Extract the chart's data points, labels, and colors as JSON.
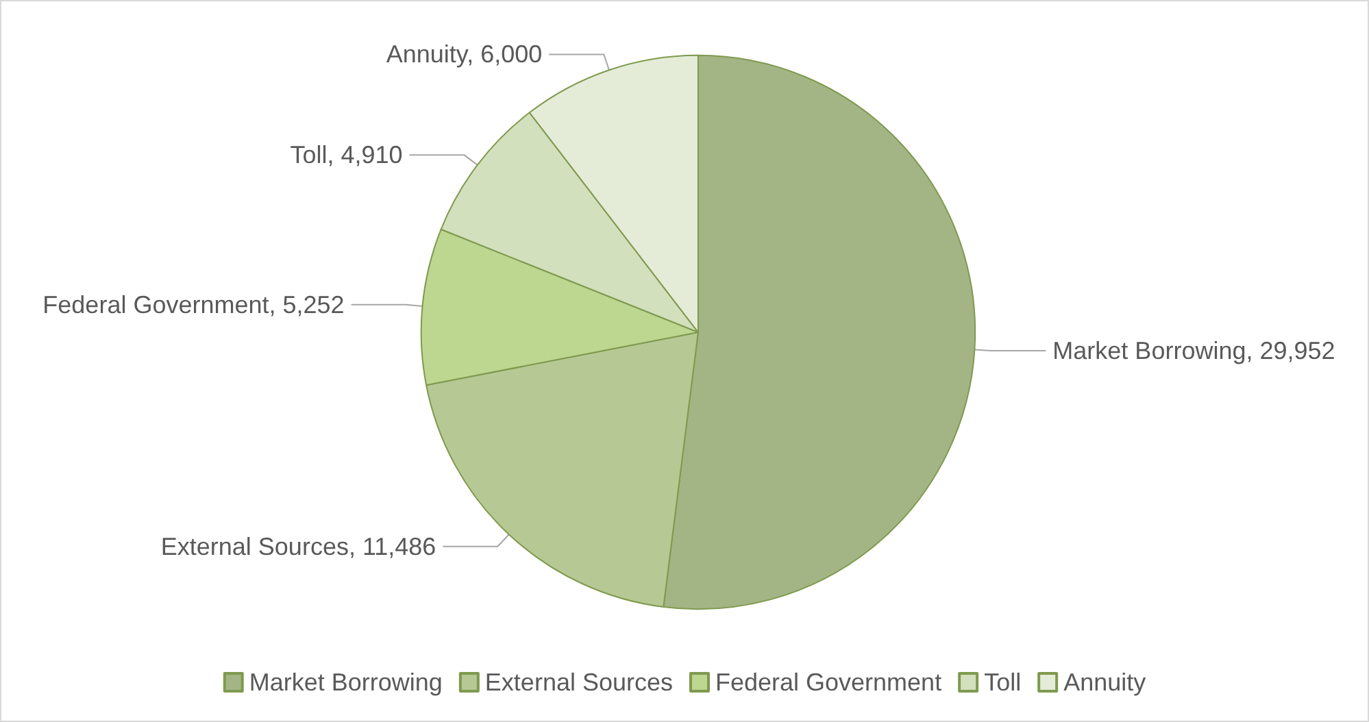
{
  "chart_data": {
    "type": "pie",
    "categories": [
      "Market Borrowing",
      "External Sources",
      "Federal Government",
      "Toll",
      "Annuity"
    ],
    "values": [
      29952,
      11486,
      5252,
      4910,
      6000
    ],
    "colors": [
      "#a3b585",
      "#b6c994",
      "#bdd690",
      "#d3e0bd",
      "#e4ecd8"
    ],
    "value_labels": [
      "Market Borrowing, 29,952",
      "External Sources, 11,486",
      "Federal Government, 5,252",
      "Toll, 4,910",
      "Annuity, 6,000"
    ],
    "legend": "bottom"
  }
}
